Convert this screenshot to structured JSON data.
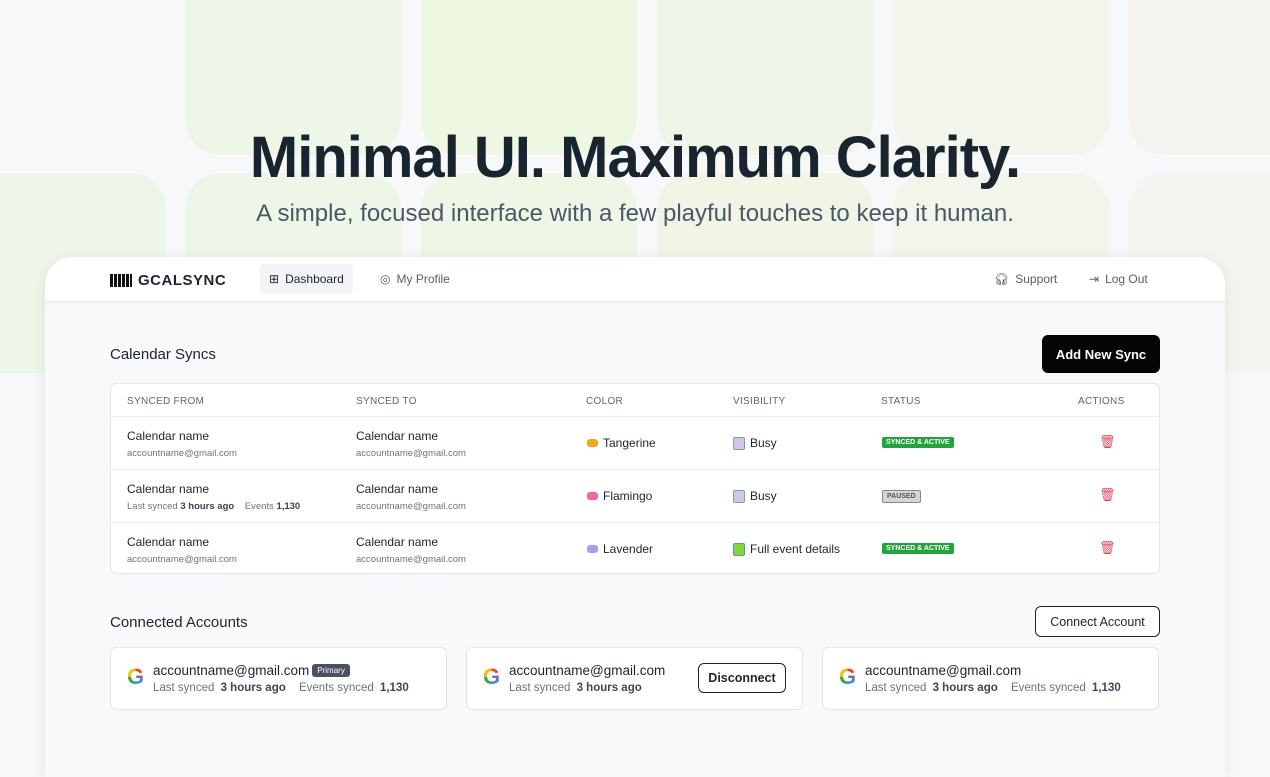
{
  "hero": {
    "title": "Minimal UI. Maximum Clarity.",
    "subtitle": "A simple, focused interface with a few playful touches to keep it human."
  },
  "nav": {
    "logo": "GCALSYNC",
    "items": [
      {
        "label": "Dashboard",
        "icon": "grid-icon",
        "active": true
      },
      {
        "label": "My Profile",
        "icon": "user-circle-icon"
      }
    ],
    "support": "Support",
    "logout": "Log Out"
  },
  "syncs": {
    "title": "Calendar Syncs",
    "add_button": "Add New Sync",
    "columns": [
      "SYNCED FROM",
      "SYNCED TO",
      "COLOR",
      "VISIBILITY",
      "STATUS",
      "ACTIONS"
    ],
    "rows": [
      {
        "from_name": "Calendar name",
        "from_sub": "accountname@gmail.com",
        "to_name": "Calendar name",
        "to_sub": "accountname@gmail.com",
        "color": "Tangerine",
        "color_hex": "#f5a623",
        "visibility": "Busy",
        "status": "SYNCED & ACTIVE"
      },
      {
        "from_name": "Calendar name",
        "last_synced_label": "Last synced",
        "last_synced": "3 hours ago",
        "events_label": "Events",
        "events": "1,130",
        "to_name": "Calendar name",
        "to_sub": "accountname@gmail.com",
        "color": "Flamingo",
        "color_hex": "#e86aa8",
        "visibility": "Busy",
        "status": "PAUSED"
      },
      {
        "from_name": "Calendar name",
        "from_sub": "accountname@gmail.com",
        "to_name": "Calendar name",
        "to_sub": "accountname@gmail.com",
        "color": "Lavender",
        "color_hex": "#a99cf0",
        "visibility": "Full event details",
        "status": "SYNCED & ACTIVE"
      }
    ]
  },
  "accounts": {
    "title": "Connected Accounts",
    "connect_button": "Connect Account",
    "items": [
      {
        "email": "accountname@gmail.com",
        "badge": "Primary",
        "last_synced_label": "Last synced",
        "last_synced": "3 hours ago",
        "events_label": "Events synced",
        "events": "1,130"
      },
      {
        "email": "accountname@gmail.com",
        "last_synced_label": "Last synced",
        "last_synced": "3 hours ago",
        "action": "Disconnect"
      },
      {
        "email": "accountname@gmail.com",
        "last_synced_label": "Last synced",
        "last_synced": "3 hours ago",
        "events_label": "Events synced",
        "events": "1,130"
      }
    ]
  }
}
